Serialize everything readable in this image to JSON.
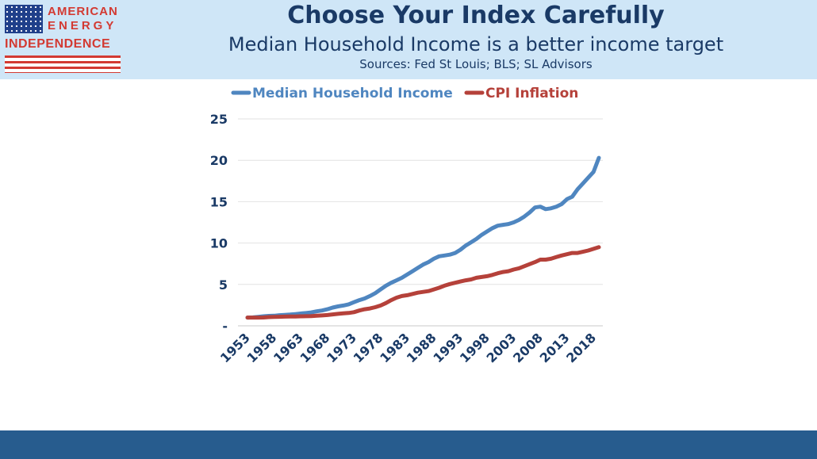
{
  "header": {
    "logo": {
      "line1": "AMERICAN",
      "line2": "ENERGY",
      "line3": "INDEPENDENCE"
    },
    "title": "Choose Your Index Carefully",
    "subtitle": "Median Household Income is a better income target",
    "sources": "Sources: Fed St Louis; BLS; SL Advisors"
  },
  "colors": {
    "header_bg": "#cfe6f7",
    "footer_bar": "#275c8e",
    "title_text": "#1a3a66",
    "income_line": "#4f86c0",
    "cpi_line": "#b5413a"
  },
  "chart_data": {
    "type": "line",
    "title": "",
    "xlabel": "",
    "ylabel": "",
    "legend_position": "top",
    "grid": true,
    "ylim": [
      0,
      25
    ],
    "y_ticks": [
      "-",
      "5",
      "10",
      "15",
      "20",
      "25"
    ],
    "x_tick_labels": [
      "1953",
      "1958",
      "1963",
      "1968",
      "1973",
      "1978",
      "1983",
      "1988",
      "1993",
      "1998",
      "2003",
      "2008",
      "2013",
      "2018"
    ],
    "x": [
      1953,
      1954,
      1955,
      1956,
      1957,
      1958,
      1959,
      1960,
      1961,
      1962,
      1963,
      1964,
      1965,
      1966,
      1967,
      1968,
      1969,
      1970,
      1971,
      1972,
      1973,
      1974,
      1975,
      1976,
      1977,
      1978,
      1979,
      1980,
      1981,
      1982,
      1983,
      1984,
      1985,
      1986,
      1987,
      1988,
      1989,
      1990,
      1991,
      1992,
      1993,
      1994,
      1995,
      1996,
      1997,
      1998,
      1999,
      2000,
      2001,
      2002,
      2003,
      2004,
      2005,
      2006,
      2007,
      2008,
      2009,
      2010,
      2011,
      2012,
      2013,
      2014,
      2015,
      2016,
      2017,
      2018,
      2019
    ],
    "series": [
      {
        "name": "Median Household Income",
        "color": "#4f86c0",
        "values": [
          1.0,
          1.02,
          1.08,
          1.15,
          1.2,
          1.22,
          1.28,
          1.32,
          1.36,
          1.42,
          1.48,
          1.55,
          1.62,
          1.75,
          1.85,
          2.0,
          2.2,
          2.35,
          2.45,
          2.6,
          2.85,
          3.1,
          3.3,
          3.6,
          3.95,
          4.4,
          4.85,
          5.2,
          5.5,
          5.8,
          6.2,
          6.6,
          7.0,
          7.4,
          7.7,
          8.1,
          8.4,
          8.5,
          8.6,
          8.8,
          9.2,
          9.7,
          10.1,
          10.5,
          11.0,
          11.4,
          11.8,
          12.1,
          12.2,
          12.3,
          12.5,
          12.8,
          13.2,
          13.7,
          14.3,
          14.4,
          14.1,
          14.2,
          14.4,
          14.7,
          15.3,
          15.6,
          16.5,
          17.2,
          17.9,
          18.6,
          20.3
        ]
      },
      {
        "name": "CPI Inflation",
        "color": "#b5413a",
        "values": [
          1.0,
          1.0,
          1.0,
          1.01,
          1.05,
          1.08,
          1.09,
          1.11,
          1.12,
          1.13,
          1.15,
          1.16,
          1.18,
          1.22,
          1.25,
          1.3,
          1.38,
          1.45,
          1.5,
          1.55,
          1.65,
          1.85,
          2.0,
          2.1,
          2.25,
          2.45,
          2.75,
          3.1,
          3.4,
          3.6,
          3.7,
          3.85,
          4.0,
          4.1,
          4.2,
          4.4,
          4.6,
          4.85,
          5.05,
          5.2,
          5.35,
          5.5,
          5.6,
          5.8,
          5.9,
          6.0,
          6.15,
          6.35,
          6.5,
          6.6,
          6.8,
          6.95,
          7.2,
          7.45,
          7.7,
          8.0,
          8.0,
          8.1,
          8.3,
          8.5,
          8.65,
          8.8,
          8.8,
          8.95,
          9.1,
          9.3,
          9.5
        ]
      }
    ]
  }
}
